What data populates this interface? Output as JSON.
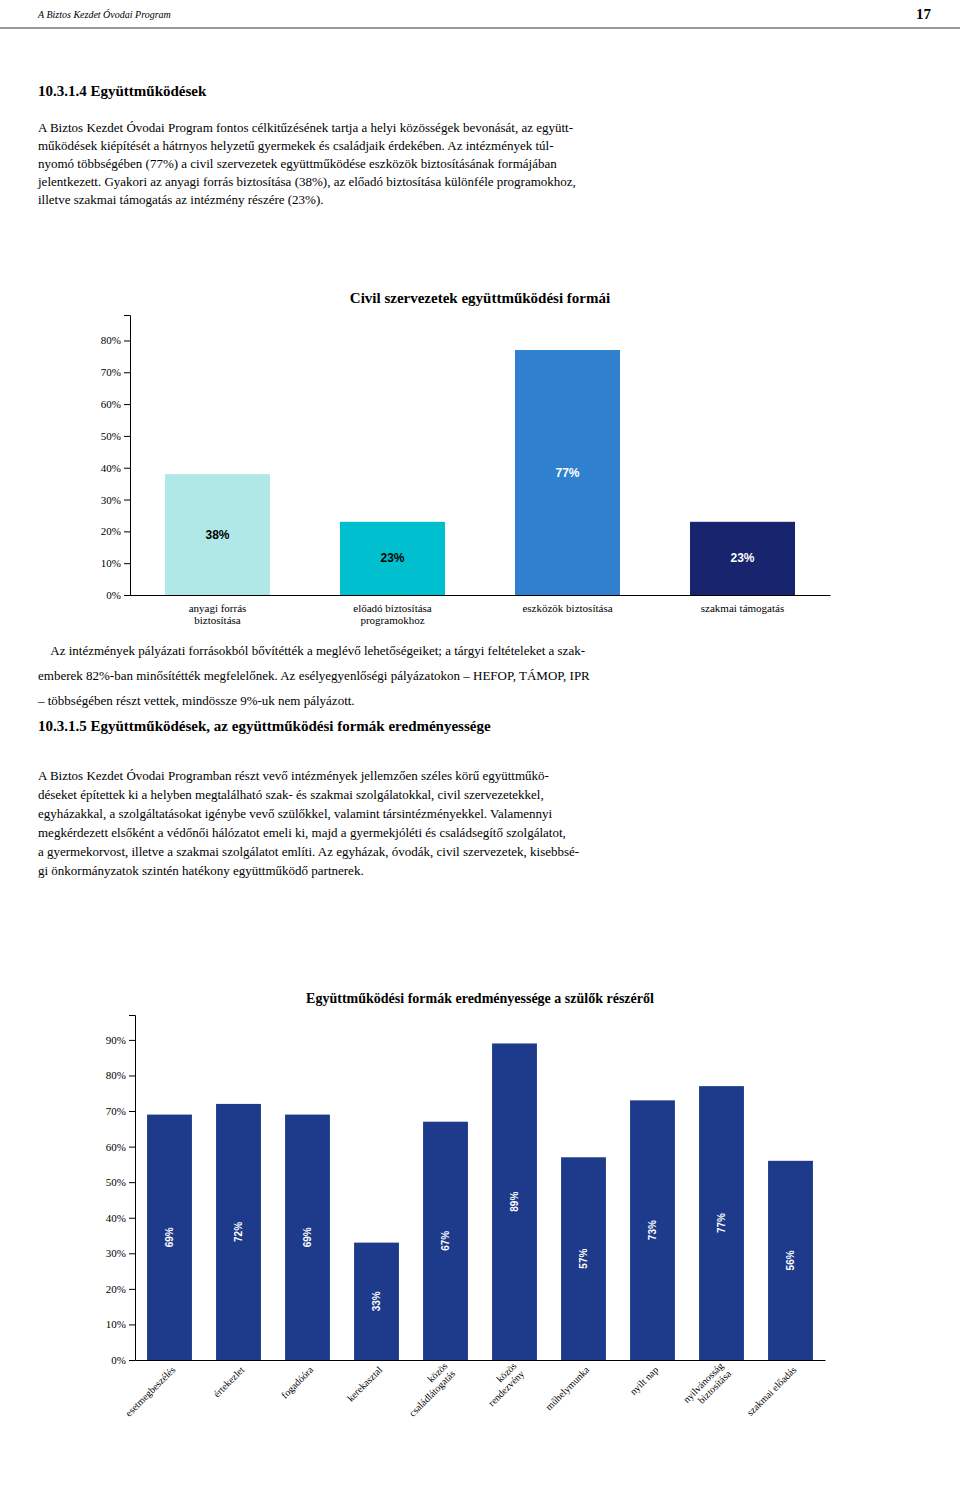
{
  "page_header": "A Biztos Kezdet Óvodai Program",
  "page_number": "17",
  "section_title": "10.3.1.4 Együttműködések",
  "text1_lines": [
    "A Biztos Kezdet Óvodai Program fontos célkitűzésének tartja a helyi közösségek bevonását, az együtt-",
    "működések kiépítését a hátrnyos helyzetű gyermekek és családjaik érdekében. Az intézmények túl-",
    "nyomó többségében (77%) a civil szervezetek együttműködése eszközök biztosításának formájában",
    "jelentkezett. Gyakori az anyagi forrás biztosítása (38%), az előadó biztosítása különféle programokhoz,",
    "illetve szakmai támogatás az intézmény részére (23%)."
  ],
  "text2_lines": [
    "    Az intézmények pályázati forrásokból bővítétték a meglévő lehetőségeiket; a tárgyi feltételeket a szak-",
    "emberek 82%-ban minősítétték megfelelőnek. Az esélyegyenlőségi pályázatokon – HEFOP, TÁMOP, IPR",
    "– többségében részt vettek, mindössze 9%-uk nem pályázott."
  ],
  "section_title2": "10.3.1.5 Együttműködések, az együttműködési formák eredményessége",
  "text3_lines": [
    "A Biztos Kezdet Óvodai Programban részt vevő intézmények jellemzően széles körű együttműkö-",
    "déseket építettek ki a helyben megtalálható szak- és szakmai szolgálatokkal, civil szervezetekkel,",
    "egyházakkal, a szolgáltatásokat igénybe vevő szülőkkel, valamint társintézményekkel. Valamennyi",
    "megkérdezett elsőként a védőnői hálózatot emeli ki, majd a gyermekjóléti és családsegítő szolgálatot,",
    "a gyermekorvost, illetve a szakmai szolgálatot említi. Az egyházak, óvodák, civil szervezetek, kisebbsé-",
    "gi önkormányzatok szintén hatékony együttműködő partnerek."
  ],
  "chart_data": [
    {
      "type": "bar",
      "title": "Civil szervezetek együttműködési formái",
      "categories": [
        "anyagi forrás\nbiztosítása",
        "előadó biztosítása\nprogramokhoz",
        "eszközök biztosítása",
        "szakmai támogatás"
      ],
      "values": [
        38,
        23,
        77,
        23
      ],
      "value_labels": [
        "38%",
        "23%",
        "77%",
        "23%"
      ],
      "colors": [
        "#b0e8e8",
        "#00c0d0",
        "#3080d0",
        "#18246e"
      ],
      "ylim": [
        0,
        88
      ],
      "yticks": [
        {
          "value": 0,
          "label": "0%"
        },
        {
          "value": 10,
          "label": "10%"
        },
        {
          "value": 20,
          "label": "20%"
        },
        {
          "value": 30,
          "label": "30%"
        },
        {
          "value": 40,
          "label": "40%"
        },
        {
          "value": 50,
          "label": "50%"
        },
        {
          "value": 60,
          "label": "60%"
        },
        {
          "value": 70,
          "label": "70%"
        },
        {
          "value": 80,
          "label": "80%"
        }
      ],
      "data_labels": true,
      "grid": false
    },
    {
      "type": "bar",
      "title": "Együttműködési formák eredményessége a szülők részéről",
      "categories": [
        "esetmegbeszélés",
        "értekezlet",
        "fogadóóra",
        "kerekasztal",
        "közös\ncsaládlátogatás",
        "közös\nrendezvény",
        "műhelymunka",
        "nyilt nap",
        "nyilvánosság\nbiztosítása",
        "szakmai előadás"
      ],
      "values": [
        69,
        72,
        69,
        33,
        67,
        89,
        57,
        73,
        77,
        56
      ],
      "value_labels": [
        "69%",
        "72%",
        "69%",
        "33%",
        "67%",
        "89%",
        "57%",
        "73%",
        "77%",
        "56%"
      ],
      "color": "#1e3a8a",
      "ylim": [
        0,
        97
      ],
      "yticks": [
        {
          "value": 0,
          "label": "0%"
        },
        {
          "value": 10,
          "label": "10%"
        },
        {
          "value": 20,
          "label": "20%"
        },
        {
          "value": 30,
          "label": "30%"
        },
        {
          "value": 40,
          "label": "40%"
        },
        {
          "value": 50,
          "label": "50%"
        },
        {
          "value": 60,
          "label": "60%"
        },
        {
          "value": 70,
          "label": "70%"
        },
        {
          "value": 80,
          "label": "80%"
        },
        {
          "value": 90,
          "label": "90%"
        }
      ],
      "data_labels": true,
      "grid": false
    }
  ]
}
